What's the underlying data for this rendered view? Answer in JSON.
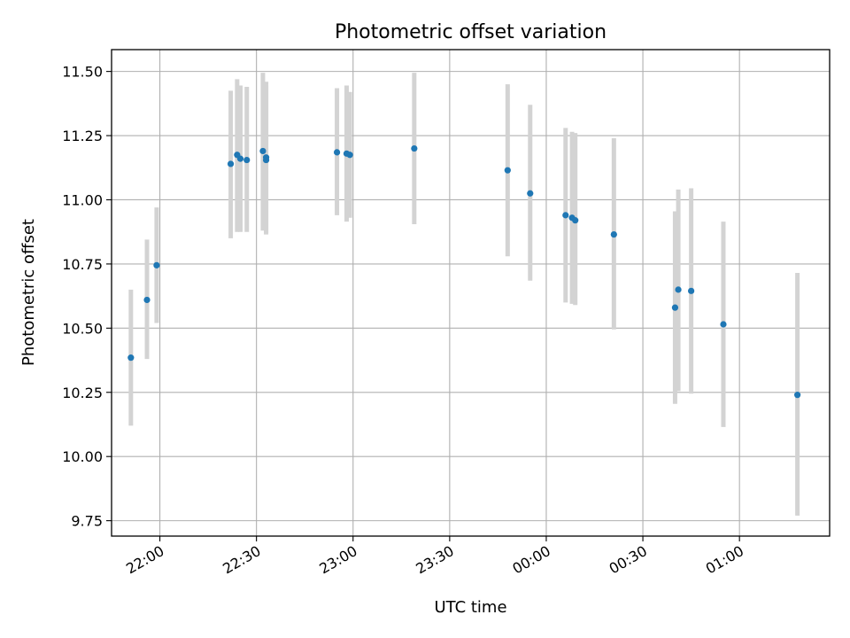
{
  "chart_data": {
    "type": "scatter",
    "title": "Photometric offset variation",
    "xlabel": "UTC time",
    "ylabel": "Photometric offset",
    "x_axis": {
      "kind": "time",
      "range": [
        "21:45",
        "01:28"
      ],
      "ticks": [
        "22:00",
        "22:30",
        "23:00",
        "23:30",
        "00:00",
        "00:30",
        "01:00"
      ]
    },
    "y_axis": {
      "range": [
        9.69,
        11.585
      ],
      "ticks": [
        "9.75",
        "10.00",
        "10.25",
        "10.50",
        "10.75",
        "11.00",
        "11.25",
        "11.50"
      ]
    },
    "grid": true,
    "series": [
      {
        "marker_color": "#1f77b4",
        "errorbar_color": "#d3d3d3",
        "points": [
          {
            "t": "21:51",
            "y": 10.385,
            "low": 10.12,
            "high": 10.65
          },
          {
            "t": "21:56",
            "y": 10.61,
            "low": 10.38,
            "high": 10.845
          },
          {
            "t": "21:59",
            "y": 10.745,
            "low": 10.52,
            "high": 10.97
          },
          {
            "t": "22:22",
            "y": 11.14,
            "low": 10.85,
            "high": 11.425
          },
          {
            "t": "22:24",
            "y": 11.175,
            "low": 10.875,
            "high": 11.47
          },
          {
            "t": "22:25",
            "y": 11.16,
            "low": 10.875,
            "high": 11.445
          },
          {
            "t": "22:27",
            "y": 11.155,
            "low": 10.875,
            "high": 11.44
          },
          {
            "t": "22:32",
            "y": 11.19,
            "low": 10.88,
            "high": 11.495
          },
          {
            "t": "22:33",
            "y": 11.165,
            "low": 10.87,
            "high": 11.46
          },
          {
            "t": "22:33",
            "y": 11.155,
            "low": 10.865,
            "high": 11.445
          },
          {
            "t": "22:55",
            "y": 11.185,
            "low": 10.94,
            "high": 11.435
          },
          {
            "t": "22:58",
            "y": 11.18,
            "low": 10.915,
            "high": 11.445
          },
          {
            "t": "22:59",
            "y": 11.175,
            "low": 10.93,
            "high": 11.42
          },
          {
            "t": "23:19",
            "y": 11.2,
            "low": 10.905,
            "high": 11.495
          },
          {
            "t": "23:48",
            "y": 11.115,
            "low": 10.78,
            "high": 11.45
          },
          {
            "t": "23:55",
            "y": 11.025,
            "low": 10.685,
            "high": 11.37
          },
          {
            "t": "00:06",
            "y": 10.94,
            "low": 10.6,
            "high": 11.28
          },
          {
            "t": "00:08",
            "y": 10.93,
            "low": 10.595,
            "high": 11.265
          },
          {
            "t": "00:09",
            "y": 10.92,
            "low": 10.59,
            "high": 11.26
          },
          {
            "t": "00:21",
            "y": 10.865,
            "low": 10.495,
            "high": 11.24
          },
          {
            "t": "00:40",
            "y": 10.58,
            "low": 10.205,
            "high": 10.955
          },
          {
            "t": "00:41",
            "y": 10.65,
            "low": 10.255,
            "high": 11.04
          },
          {
            "t": "00:45",
            "y": 10.645,
            "low": 10.245,
            "high": 11.045
          },
          {
            "t": "00:55",
            "y": 10.515,
            "low": 10.115,
            "high": 10.915
          },
          {
            "t": "01:18",
            "y": 10.24,
            "low": 9.77,
            "high": 10.715
          }
        ]
      }
    ]
  }
}
